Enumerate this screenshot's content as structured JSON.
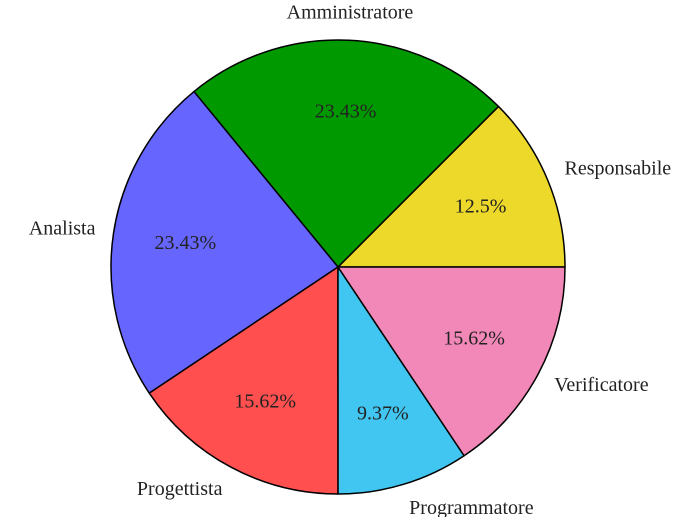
{
  "chart_data": {
    "type": "pie",
    "categories": [
      "Responsabile",
      "Amministratore",
      "Analista",
      "Progettista",
      "Programmatore",
      "Verificatore"
    ],
    "values": [
      12.5,
      23.43,
      23.43,
      15.62,
      9.37,
      15.62
    ],
    "value_labels": [
      "12.5%",
      "23.43%",
      "23.43%",
      "15.62%",
      "9.37%",
      "15.62%"
    ],
    "colors": [
      "#ecd92a",
      "#009900",
      "#6666ff",
      "#ff4f4f",
      "#40c6f0",
      "#f288b8"
    ]
  }
}
